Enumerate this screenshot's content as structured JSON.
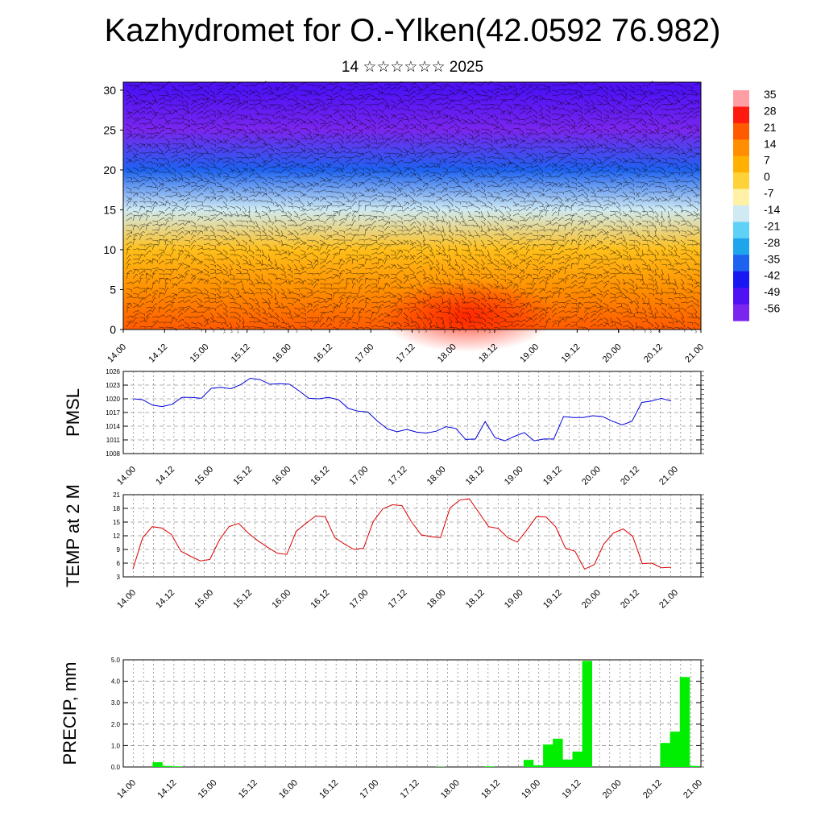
{
  "page": {
    "title": "Kazhydromet for O.-Ylken(42.0592 76.982)",
    "subtitle": "14 ☆☆☆☆☆☆ 2025"
  },
  "chart_data": [
    {
      "type": "heatmap",
      "xlabel": "",
      "ylabel": "",
      "xticks": [
        "14.00",
        "14.12",
        "15.00",
        "15.12",
        "16.00",
        "16.12",
        "17.00",
        "17.12",
        "18.00",
        "18.12",
        "19.00",
        "19.12",
        "20.00",
        "20.12",
        "21.00"
      ],
      "yticks": [
        0,
        5,
        10,
        15,
        20,
        25,
        30
      ],
      "ylim": [
        0,
        31
      ],
      "colorbar": {
        "labels": [
          "35",
          "28",
          "21",
          "14",
          "7",
          "0",
          "-7",
          "-14",
          "-21",
          "-28",
          "-35",
          "-42",
          "-49",
          "-56"
        ],
        "colors": [
          "#ff9ea4",
          "#ff1a10",
          "#ff5a00",
          "#ff8f00",
          "#ffb000",
          "#ffd23a",
          "#fff2a6",
          "#cfeaf2",
          "#5fd0f6",
          "#1fa5ec",
          "#1e62f0",
          "#1818f2",
          "#4e12f4",
          "#7a26ee"
        ]
      },
      "levels": [
        0,
        5,
        10,
        15,
        20,
        25,
        30
      ],
      "level_temperatures": [
        21,
        14,
        4,
        -14,
        -35,
        -56,
        -49
      ],
      "grid": true
    },
    {
      "type": "line",
      "ylabel": "PMSL",
      "ylim": [
        1008,
        1026
      ],
      "yticks": [
        1008,
        1011,
        1014,
        1017,
        1020,
        1023,
        1026
      ],
      "xticks": [
        "14.00",
        "14.12",
        "15.00",
        "15.12",
        "16.00",
        "16.12",
        "17.00",
        "17.12",
        "18.00",
        "18.12",
        "19.00",
        "19.12",
        "20.00",
        "20.12",
        "21.00"
      ],
      "color": "#0000dd",
      "values": [
        1020.0,
        1019.8,
        1018.6,
        1018.3,
        1018.8,
        1020.3,
        1020.3,
        1020.1,
        1022.3,
        1022.5,
        1022.2,
        1023.1,
        1024.5,
        1024.2,
        1023.2,
        1023.3,
        1023.2,
        1021.7,
        1020.1,
        1020.0,
        1020.3,
        1019.8,
        1017.9,
        1017.3,
        1017.1,
        1015.1,
        1013.4,
        1012.8,
        1013.3,
        1012.7,
        1012.5,
        1012.9,
        1013.9,
        1013.5,
        1011.1,
        1011.2,
        1015.0,
        1011.5,
        1010.8,
        1011.8,
        1012.6,
        1010.8,
        1011.2,
        1011.2,
        1016.1,
        1015.9,
        1015.9,
        1016.3,
        1016.1,
        1015.1,
        1014.3,
        1015.1,
        1019.2,
        1019.5,
        1020.1,
        1019.5
      ]
    },
    {
      "type": "line",
      "ylabel": "TEMP at 2 M",
      "ylim": [
        3,
        21
      ],
      "yticks": [
        3,
        6,
        9,
        12,
        15,
        18,
        21
      ],
      "xticks": [
        "14.00",
        "14.12",
        "15.00",
        "15.12",
        "16.00",
        "16.12",
        "17.00",
        "17.12",
        "18.00",
        "18.12",
        "19.00",
        "19.12",
        "20.00",
        "20.12",
        "21.00"
      ],
      "color": "#dd0000",
      "values": [
        4.7,
        11.5,
        14.0,
        13.7,
        12.3,
        8.6,
        7.5,
        6.5,
        6.8,
        11.1,
        14.0,
        14.7,
        12.6,
        10.9,
        9.5,
        8.2,
        7.9,
        13.0,
        14.7,
        16.3,
        16.2,
        11.6,
        10.2,
        9.0,
        9.3,
        15.1,
        17.9,
        18.8,
        18.6,
        15.0,
        12.2,
        11.8,
        11.6,
        18.1,
        19.8,
        20.1,
        17.1,
        14.0,
        13.6,
        11.6,
        10.6,
        13.3,
        16.2,
        16.1,
        13.9,
        9.3,
        8.6,
        4.7,
        5.7,
        10.2,
        12.6,
        13.5,
        11.9,
        5.9,
        6.0,
        5.0,
        5.1
      ]
    },
    {
      "type": "bar",
      "ylabel": "PRECIP, mm",
      "ylim": [
        0,
        5
      ],
      "yticks": [
        "0.0",
        "1.0",
        "2.0",
        "3.0",
        "4.0",
        "5.0"
      ],
      "xticks": [
        "14.00",
        "14.12",
        "15.00",
        "15.12",
        "16.00",
        "16.12",
        "17.00",
        "17.12",
        "18.00",
        "18.12",
        "19.00",
        "19.12",
        "20.00",
        "20.12",
        "21.00"
      ],
      "color": "#00ee00",
      "values": [
        0,
        0,
        0,
        0.22,
        0.05,
        0.03,
        0,
        0,
        0,
        0,
        0,
        0,
        0,
        0,
        0,
        0,
        0,
        0,
        0,
        0,
        0,
        0,
        0,
        0,
        0,
        0,
        0,
        0,
        0,
        0,
        0,
        0,
        0.01,
        0,
        0,
        0,
        0,
        0.03,
        0,
        0,
        0,
        0.33,
        0.08,
        1.05,
        1.32,
        0.35,
        0.72,
        4.95,
        0,
        0,
        0,
        0,
        0,
        0,
        0,
        1.12,
        1.65,
        4.2,
        0.05
      ]
    }
  ]
}
